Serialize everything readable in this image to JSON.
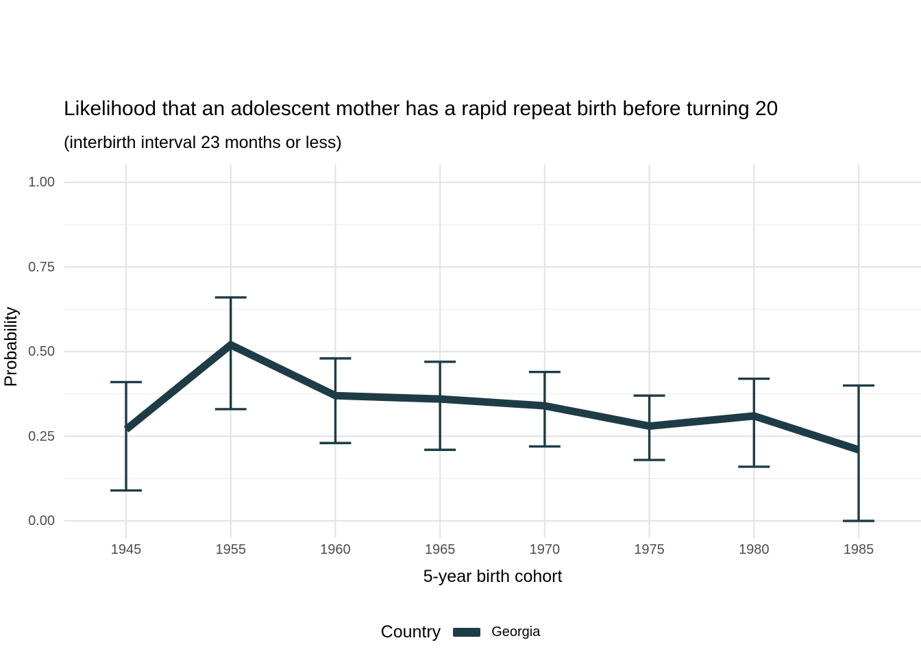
{
  "chart_data": {
    "type": "line",
    "title": "Likelihood that an adolescent mother has a rapid repeat birth before turning 20",
    "subtitle": "(interbirth interval 23 months or less)",
    "xlabel": "5-year birth cohort",
    "ylabel": "Probability",
    "categories": [
      "1945",
      "1955",
      "1960",
      "1965",
      "1970",
      "1975",
      "1980",
      "1985"
    ],
    "series": [
      {
        "name": "Georgia",
        "values": [
          0.27,
          0.52,
          0.37,
          0.36,
          0.34,
          0.28,
          0.31,
          0.21
        ],
        "ci_lower": [
          0.09,
          0.33,
          0.23,
          0.21,
          0.22,
          0.18,
          0.16,
          0.0
        ],
        "ci_upper": [
          0.41,
          0.66,
          0.48,
          0.47,
          0.44,
          0.37,
          0.42,
          0.4
        ],
        "color": "#1e3c46"
      }
    ],
    "ylim": [
      0,
      1
    ],
    "y_ticks": [
      {
        "value": 0.0,
        "label": "0.00"
      },
      {
        "value": 0.25,
        "label": "0.25"
      },
      {
        "value": 0.5,
        "label": "0.50"
      },
      {
        "value": 0.75,
        "label": "0.75"
      },
      {
        "value": 1.0,
        "label": "1.00"
      }
    ],
    "y_minor_gridlines": [
      0.125,
      0.375,
      0.625,
      0.875
    ],
    "grid": "horizontal major and minor gridlines, vertical major gridline at each cohort, no axis lines or tick marks",
    "legend_position": "bottom"
  },
  "legend": {
    "title": "Country",
    "items": [
      {
        "label": "Georgia",
        "color": "#1e3c46"
      }
    ]
  },
  "colors": {
    "background": "#ffffff",
    "grid_major": "#e4e4e4",
    "grid_minor": "#f0f0f0",
    "tick_text": "#4d4d4d",
    "series_georgia": "#1e3c46"
  }
}
